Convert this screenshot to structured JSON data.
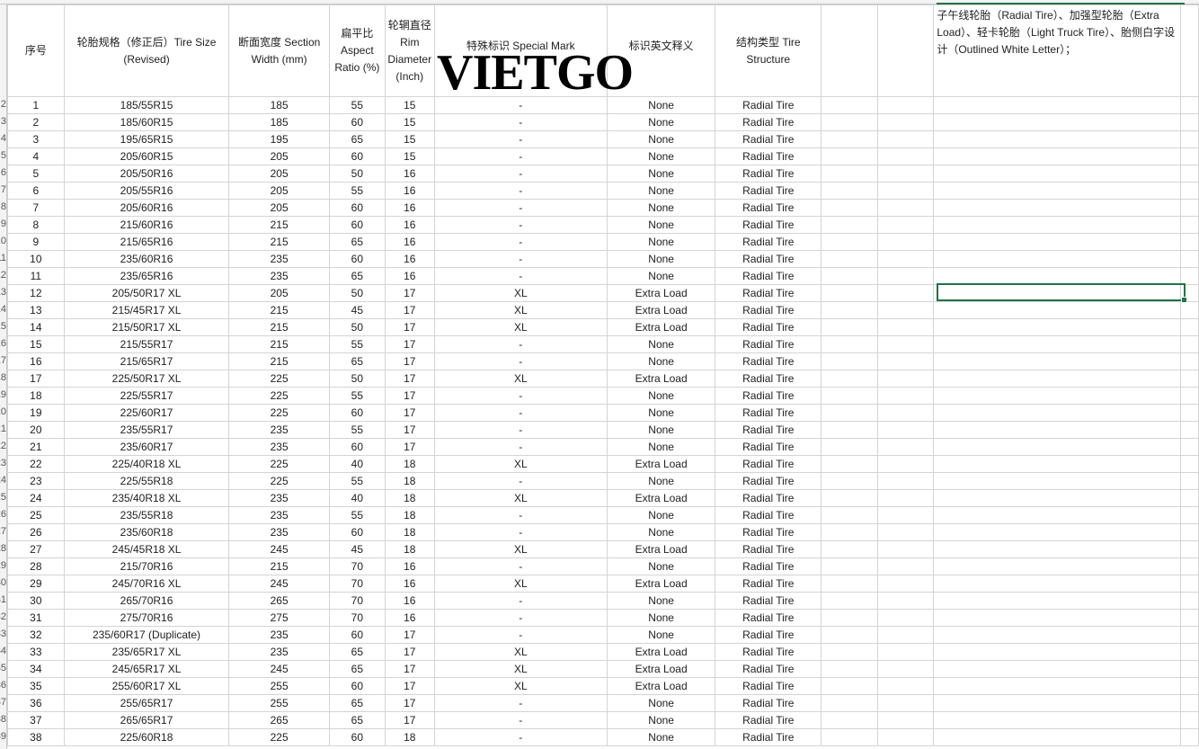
{
  "headers": [
    "序号",
    "轮胎规格（修正后）Tire Size (Revised)",
    "断面宽度 Section Width (mm)",
    "扁平比 Aspect Ratio (%)",
    "轮辋直径 Rim Diameter (Inch)",
    "特殊标识 Special Mark",
    "标识英文释义",
    "结构类型 Tire Structure",
    "",
    "",
    ""
  ],
  "note": "子午线轮胎（Radial Tire）、加强型轮胎（Extra Load）、轻卡轮胎（Light Truck Tire）、胎侧白字设计（Outlined White Letter）；",
  "watermark": "VIETGO",
  "accent": "#217346",
  "rows": [
    [
      "1",
      "185/55R15",
      "185",
      "55",
      "15",
      "-",
      "None",
      "Radial Tire"
    ],
    [
      "2",
      "185/60R15",
      "185",
      "60",
      "15",
      "-",
      "None",
      "Radial Tire"
    ],
    [
      "3",
      "195/65R15",
      "195",
      "65",
      "15",
      "-",
      "None",
      "Radial Tire"
    ],
    [
      "4",
      "205/60R15",
      "205",
      "60",
      "15",
      "-",
      "None",
      "Radial Tire"
    ],
    [
      "5",
      "205/50R16",
      "205",
      "50",
      "16",
      "-",
      "None",
      "Radial Tire"
    ],
    [
      "6",
      "205/55R16",
      "205",
      "55",
      "16",
      "-",
      "None",
      "Radial Tire"
    ],
    [
      "7",
      "205/60R16",
      "205",
      "60",
      "16",
      "-",
      "None",
      "Radial Tire"
    ],
    [
      "8",
      "215/60R16",
      "215",
      "60",
      "16",
      "-",
      "None",
      "Radial Tire"
    ],
    [
      "9",
      "215/65R16",
      "215",
      "65",
      "16",
      "-",
      "None",
      "Radial Tire"
    ],
    [
      "10",
      "235/60R16",
      "235",
      "60",
      "16",
      "-",
      "None",
      "Radial Tire"
    ],
    [
      "11",
      "235/65R16",
      "235",
      "65",
      "16",
      "-",
      "None",
      "Radial Tire"
    ],
    [
      "12",
      "205/50R17 XL",
      "205",
      "50",
      "17",
      "XL",
      "Extra Load",
      "Radial Tire"
    ],
    [
      "13",
      "215/45R17 XL",
      "215",
      "45",
      "17",
      "XL",
      "Extra Load",
      "Radial Tire"
    ],
    [
      "14",
      "215/50R17 XL",
      "215",
      "50",
      "17",
      "XL",
      "Extra Load",
      "Radial Tire"
    ],
    [
      "15",
      "215/55R17",
      "215",
      "55",
      "17",
      "-",
      "None",
      "Radial Tire"
    ],
    [
      "16",
      "215/65R17",
      "215",
      "65",
      "17",
      "-",
      "None",
      "Radial Tire"
    ],
    [
      "17",
      "225/50R17 XL",
      "225",
      "50",
      "17",
      "XL",
      "Extra Load",
      "Radial Tire"
    ],
    [
      "18",
      "225/55R17",
      "225",
      "55",
      "17",
      "-",
      "None",
      "Radial Tire"
    ],
    [
      "19",
      "225/60R17",
      "225",
      "60",
      "17",
      "-",
      "None",
      "Radial Tire"
    ],
    [
      "20",
      "235/55R17",
      "235",
      "55",
      "17",
      "-",
      "None",
      "Radial Tire"
    ],
    [
      "21",
      "235/60R17",
      "235",
      "60",
      "17",
      "-",
      "None",
      "Radial Tire"
    ],
    [
      "22",
      "225/40R18 XL",
      "225",
      "40",
      "18",
      "XL",
      "Extra Load",
      "Radial Tire"
    ],
    [
      "23",
      "225/55R18",
      "225",
      "55",
      "18",
      "-",
      "None",
      "Radial Tire"
    ],
    [
      "24",
      "235/40R18 XL",
      "235",
      "40",
      "18",
      "XL",
      "Extra Load",
      "Radial Tire"
    ],
    [
      "25",
      "235/55R18",
      "235",
      "55",
      "18",
      "-",
      "None",
      "Radial Tire"
    ],
    [
      "26",
      "235/60R18",
      "235",
      "60",
      "18",
      "-",
      "None",
      "Radial Tire"
    ],
    [
      "27",
      "245/45R18 XL",
      "245",
      "45",
      "18",
      "XL",
      "Extra Load",
      "Radial Tire"
    ],
    [
      "28",
      "215/70R16",
      "215",
      "70",
      "16",
      "-",
      "None",
      "Radial Tire"
    ],
    [
      "29",
      "245/70R16 XL",
      "245",
      "70",
      "16",
      "XL",
      "Extra Load",
      "Radial Tire"
    ],
    [
      "30",
      "265/70R16",
      "265",
      "70",
      "16",
      "-",
      "None",
      "Radial Tire"
    ],
    [
      "31",
      "275/70R16",
      "275",
      "70",
      "16",
      "-",
      "None",
      "Radial Tire"
    ],
    [
      "32",
      "235/60R17 (Duplicate)",
      "235",
      "60",
      "17",
      "-",
      "None",
      "Radial Tire"
    ],
    [
      "33",
      "235/65R17 XL",
      "235",
      "65",
      "17",
      "XL",
      "Extra Load",
      "Radial Tire"
    ],
    [
      "34",
      "245/65R17 XL",
      "245",
      "65",
      "17",
      "XL",
      "Extra Load",
      "Radial Tire"
    ],
    [
      "35",
      "255/60R17 XL",
      "255",
      "60",
      "17",
      "XL",
      "Extra Load",
      "Radial Tire"
    ],
    [
      "36",
      "255/65R17",
      "255",
      "65",
      "17",
      "-",
      "None",
      "Radial Tire"
    ],
    [
      "37",
      "265/65R17",
      "265",
      "65",
      "17",
      "-",
      "None",
      "Radial Tire"
    ],
    [
      "38",
      "225/60R18",
      "225",
      "60",
      "18",
      "-",
      "None",
      "Radial Tire"
    ]
  ]
}
